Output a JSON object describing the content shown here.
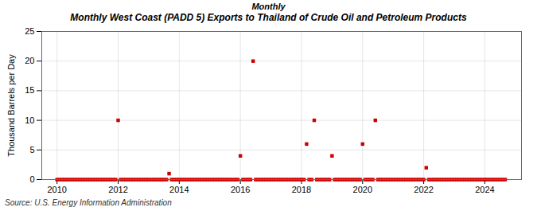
{
  "chart_data": {
    "type": "scatter",
    "title": "Monthly West Coast (PADD 5) Exports to Thailand of Crude Oil and Petroleum Products",
    "subtitle": "Monthly",
    "annotations": [
      "Source: U.S. Energy Information Administration"
    ],
    "y_label": "Thousand Barrels per Day",
    "color": "#cc0000",
    "marker": "square",
    "grid": true,
    "xlim": [
      2009.5,
      2025.2
    ],
    "ylim": [
      0,
      25
    ],
    "xticks": [
      2010,
      2012,
      2014,
      2016,
      2018,
      2020,
      2022,
      2024
    ],
    "yticks": [
      0,
      5,
      10,
      15,
      20,
      25
    ],
    "x": [
      2010,
      2010.083,
      2010.167,
      2010.25,
      2010.333,
      2010.417,
      2010.5,
      2010.583,
      2010.667,
      2010.75,
      2010.833,
      2010.917,
      2011,
      2011.083,
      2011.167,
      2011.25,
      2011.333,
      2011.417,
      2011.5,
      2011.583,
      2011.667,
      2011.75,
      2011.833,
      2011.917,
      2012,
      2012.083,
      2012.167,
      2012.25,
      2012.333,
      2012.417,
      2012.5,
      2012.583,
      2012.667,
      2012.75,
      2012.833,
      2012.917,
      2013,
      2013.083,
      2013.167,
      2013.25,
      2013.333,
      2013.417,
      2013.5,
      2013.583,
      2013.667,
      2013.75,
      2013.833,
      2013.917,
      2014,
      2014.083,
      2014.167,
      2014.25,
      2014.333,
      2014.417,
      2014.5,
      2014.583,
      2014.667,
      2014.75,
      2014.833,
      2014.917,
      2015,
      2015.083,
      2015.167,
      2015.25,
      2015.333,
      2015.417,
      2015.5,
      2015.583,
      2015.667,
      2015.75,
      2015.833,
      2015.917,
      2016,
      2016.083,
      2016.167,
      2016.25,
      2016.333,
      2016.417,
      2016.5,
      2016.583,
      2016.667,
      2016.75,
      2016.833,
      2016.917,
      2017,
      2017.083,
      2017.167,
      2017.25,
      2017.333,
      2017.417,
      2017.5,
      2017.583,
      2017.667,
      2017.75,
      2017.833,
      2017.917,
      2018,
      2018.083,
      2018.167,
      2018.25,
      2018.333,
      2018.417,
      2018.5,
      2018.583,
      2018.667,
      2018.75,
      2018.833,
      2018.917,
      2019,
      2019.083,
      2019.167,
      2019.25,
      2019.333,
      2019.417,
      2019.5,
      2019.583,
      2019.667,
      2019.75,
      2019.833,
      2019.917,
      2020,
      2020.083,
      2020.167,
      2020.25,
      2020.333,
      2020.417,
      2020.5,
      2020.583,
      2020.667,
      2020.75,
      2020.833,
      2020.917,
      2021,
      2021.083,
      2021.167,
      2021.25,
      2021.333,
      2021.417,
      2021.5,
      2021.583,
      2021.667,
      2021.75,
      2021.833,
      2021.917,
      2022,
      2022.083,
      2022.167,
      2022.25,
      2022.333,
      2022.417,
      2022.5,
      2022.583,
      2022.667,
      2022.75,
      2022.833,
      2022.917,
      2023,
      2023.083,
      2023.167,
      2023.25,
      2023.333,
      2023.417,
      2023.5,
      2023.583,
      2023.667,
      2023.75,
      2023.833,
      2023.917,
      2024,
      2024.083,
      2024.167,
      2024.25,
      2024.333,
      2024.417,
      2024.5,
      2024.583,
      2024.667
    ],
    "values": [
      0,
      0,
      0,
      0,
      0,
      0,
      0,
      0,
      0,
      0,
      0,
      0,
      0,
      0,
      0,
      0,
      0,
      0,
      0,
      0,
      0,
      0,
      0,
      0,
      10,
      0,
      0,
      0,
      0,
      0,
      0,
      0,
      0,
      0,
      0,
      0,
      0,
      0,
      0,
      0,
      0,
      0,
      0,
      0,
      1,
      0,
      0,
      0,
      0,
      0,
      0,
      0,
      0,
      0,
      0,
      0,
      0,
      0,
      0,
      0,
      0,
      0,
      0,
      0,
      0,
      0,
      0,
      0,
      0,
      0,
      0,
      0,
      4,
      0,
      0,
      0,
      0,
      20,
      0,
      0,
      0,
      0,
      0,
      0,
      0,
      0,
      0,
      0,
      0,
      0,
      0,
      0,
      0,
      0,
      0,
      0,
      0,
      0,
      6,
      0,
      0,
      10,
      0,
      0,
      0,
      0,
      0,
      0,
      4,
      0,
      0,
      0,
      0,
      0,
      0,
      0,
      0,
      0,
      0,
      0,
      6,
      0,
      0,
      0,
      0,
      10,
      0,
      0,
      0,
      0,
      0,
      0,
      0,
      0,
      0,
      0,
      0,
      0,
      0,
      0,
      0,
      0,
      0,
      0,
      0,
      2,
      0,
      0,
      0,
      0,
      0,
      0,
      0,
      0,
      0,
      0,
      0,
      0,
      0,
      0,
      0,
      0,
      0,
      0,
      0,
      0,
      0,
      0,
      0,
      0,
      0,
      0,
      0,
      0,
      0,
      0,
      0
    ]
  }
}
